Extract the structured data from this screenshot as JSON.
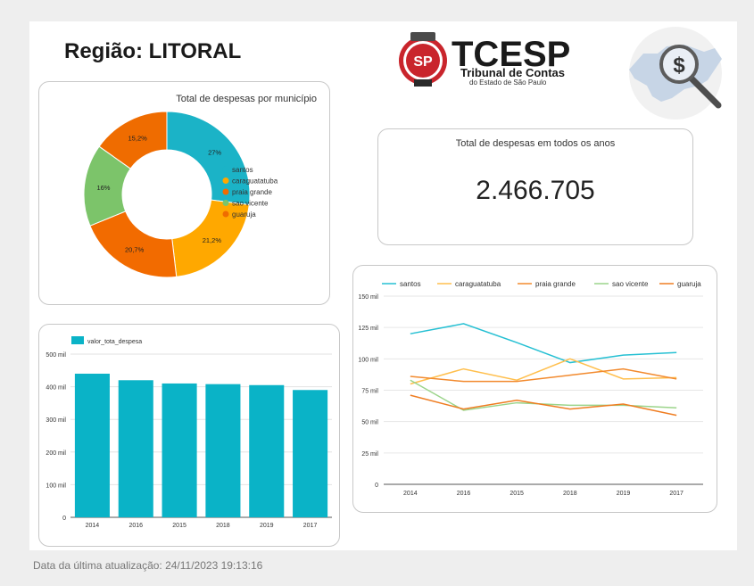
{
  "header": {
    "title": "Região: LITORAL",
    "logo": {
      "acronym": "TCESP",
      "line1": "Tribunal de Contas",
      "line2": "do Estado de São Paulo",
      "seal_text": "SP"
    },
    "map_icon": "sao-paulo-map-money-magnifier-icon"
  },
  "kpi": {
    "label": "Total de despesas em todos os anos",
    "value": "2.466.705"
  },
  "footer": {
    "text": "Data da última atualização: 24/11/2023 19:13:16"
  },
  "colors": {
    "santos": "#1bb3c7",
    "caraguatatuba": "#ffa800",
    "praia_grande": "#f26b00",
    "sao_vicente": "#7cc46a",
    "guaruja": "#ef6c00",
    "bar": "#0ab3c7"
  },
  "chart_data": [
    {
      "type": "pie",
      "title": "Total de despesas por município",
      "labels": [
        "santos",
        "caraguatatuba",
        "praia grande",
        "sao vicente",
        "guaruja"
      ],
      "values": [
        27,
        21.2,
        20.7,
        16,
        15.2
      ],
      "value_labels": [
        "27%",
        "21,2%",
        "20,7%",
        "16%",
        "15,2%"
      ],
      "colors": [
        "#1bb3c7",
        "#ffa800",
        "#f26b00",
        "#7cc46a",
        "#ef6c00"
      ],
      "legend": "right"
    },
    {
      "type": "bar",
      "series": [
        {
          "name": "valor_tota_despesa",
          "values": [
            440000,
            420000,
            410000,
            408000,
            405000,
            390000
          ]
        }
      ],
      "categories": [
        "2014",
        "2016",
        "2015",
        "2018",
        "2019",
        "2017"
      ],
      "yticks": [
        "0",
        "100 mil",
        "200 mil",
        "300 mil",
        "400 mil",
        "500 mil"
      ],
      "ylim": [
        0,
        500000
      ],
      "legend": "top-left",
      "grid": true
    },
    {
      "type": "line",
      "categories": [
        "2014",
        "2016",
        "2015",
        "2018",
        "2019",
        "2017"
      ],
      "series": [
        {
          "name": "santos",
          "color": "#26c0d3",
          "values": [
            120000,
            128000,
            113000,
            97000,
            103000,
            105000
          ]
        },
        {
          "name": "caraguatatuba",
          "color": "#ffbf4d",
          "values": [
            80000,
            92000,
            83000,
            100000,
            84000,
            85000
          ]
        },
        {
          "name": "praia grande",
          "color": "#f28a2e",
          "values": [
            86000,
            82000,
            82000,
            87000,
            92000,
            84000
          ]
        },
        {
          "name": "sao vicente",
          "color": "#9bd48a",
          "values": [
            83000,
            59000,
            65000,
            63000,
            63000,
            61000
          ]
        },
        {
          "name": "guaruja",
          "color": "#ef7d22",
          "values": [
            71000,
            60000,
            67000,
            60000,
            64000,
            55000
          ]
        }
      ],
      "yticks": [
        "0",
        "25 mil",
        "50 mil",
        "75 mil",
        "100 mil",
        "125 mil",
        "150 mil"
      ],
      "ylim": [
        0,
        150000
      ],
      "legend": "top",
      "grid": true
    }
  ]
}
